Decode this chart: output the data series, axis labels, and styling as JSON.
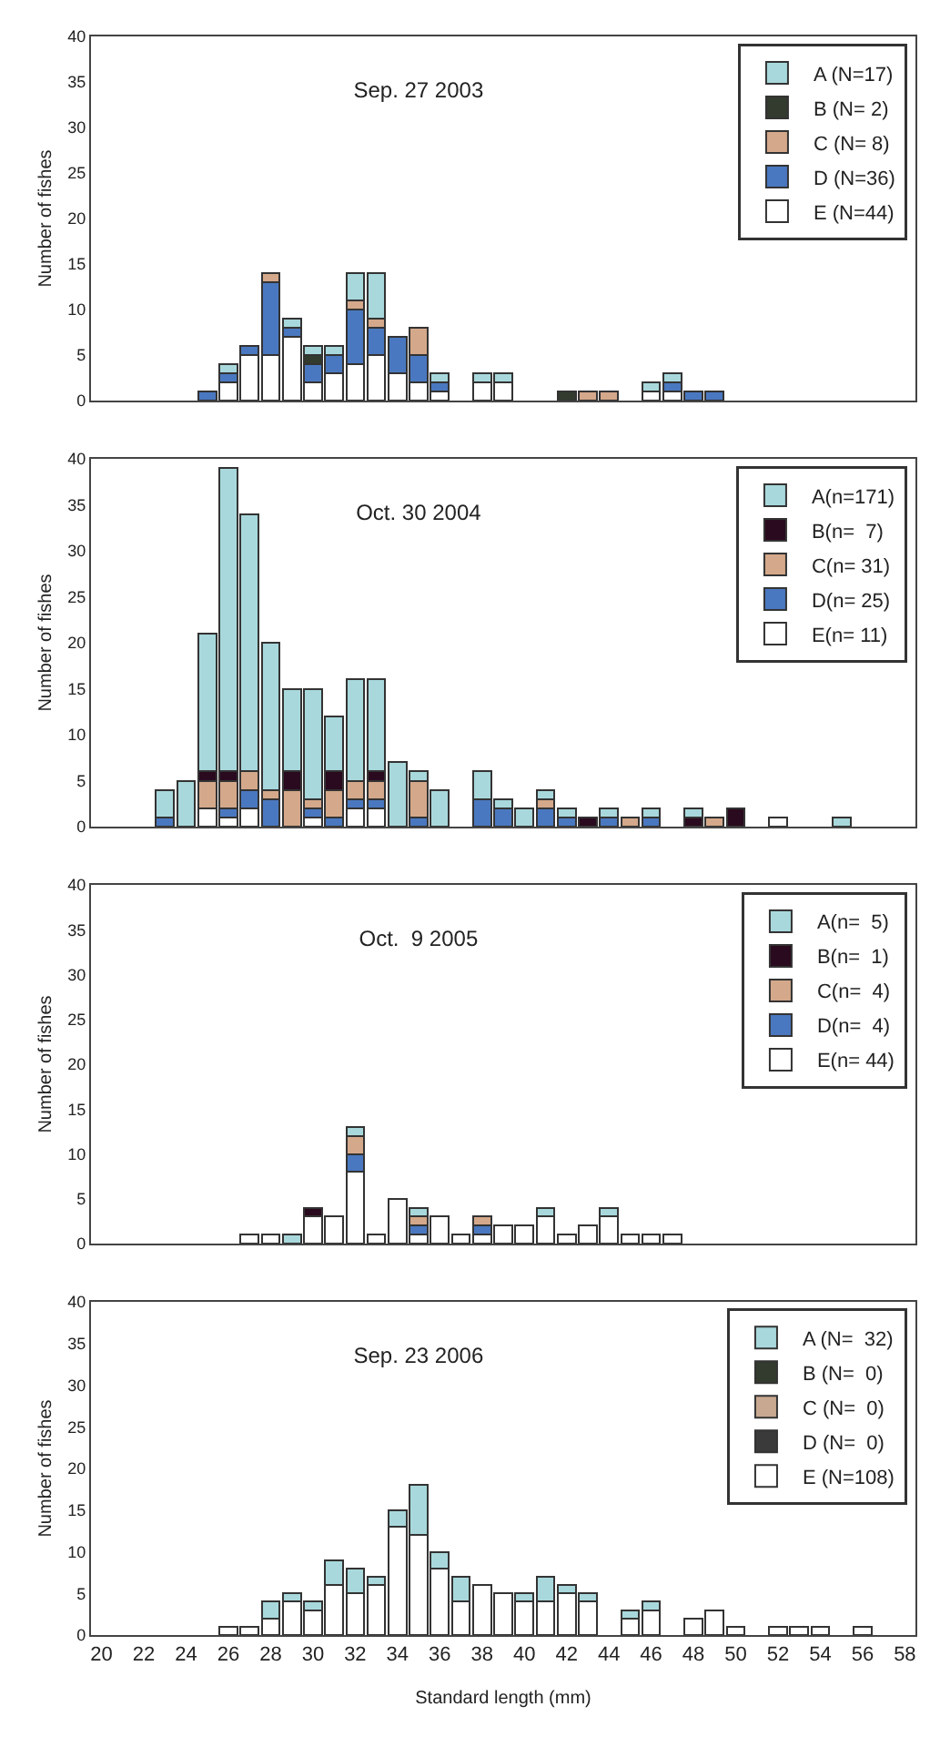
{
  "chart_data": [
    {
      "type": "bar",
      "title": "Sep. 27 2003",
      "ylabel": "Number of fishes",
      "stacked": true,
      "xlim": [
        19.5,
        58.5
      ],
      "xticks": [
        20,
        22,
        24,
        26,
        28,
        30,
        32,
        34,
        36,
        38,
        40,
        42,
        44,
        46,
        48,
        50,
        52,
        54,
        56,
        58
      ],
      "ylim": [
        0,
        40
      ],
      "yticks": [
        0,
        5,
        10,
        15,
        20,
        25,
        30,
        35,
        40
      ],
      "tick_labels": "y",
      "legend": "top right",
      "grid": false,
      "x": [
        25,
        26,
        27,
        28,
        29,
        30,
        31,
        32,
        33,
        34,
        35,
        36,
        38,
        39,
        42,
        43,
        44,
        46,
        47,
        48,
        49
      ],
      "series": [
        {
          "name": "E (N=44)",
          "color": "#ffffff",
          "values": [
            null,
            2,
            5,
            5,
            7,
            2,
            3,
            4,
            5,
            3,
            2,
            1,
            2,
            2,
            null,
            null,
            null,
            1,
            1,
            null,
            null
          ]
        },
        {
          "name": "D (N=36)",
          "color": "#4a78c0",
          "values": [
            1,
            1,
            1,
            8,
            1,
            2,
            2,
            6,
            3,
            4,
            3,
            1,
            null,
            null,
            null,
            null,
            null,
            null,
            1,
            1,
            1
          ]
        },
        {
          "name": "C (N= 8)",
          "color": "#d4a88a",
          "values": [
            null,
            null,
            null,
            1,
            null,
            null,
            null,
            1,
            1,
            null,
            3,
            null,
            null,
            null,
            null,
            1,
            1,
            null,
            null,
            null,
            null
          ]
        },
        {
          "name": "B (N= 2)",
          "color": "#333a2e",
          "values": [
            null,
            null,
            null,
            null,
            null,
            1,
            null,
            null,
            null,
            null,
            null,
            null,
            null,
            null,
            1,
            null,
            null,
            null,
            null,
            null,
            null
          ]
        },
        {
          "name": "A (N=17)",
          "color": "#a8d8dc",
          "values": [
            null,
            1,
            null,
            null,
            1,
            1,
            1,
            3,
            5,
            null,
            null,
            1,
            1,
            1,
            null,
            null,
            null,
            1,
            1,
            null,
            null
          ]
        }
      ]
    },
    {
      "type": "bar",
      "title": "Oct. 30 2004",
      "ylabel": "Number of fishes",
      "stacked": true,
      "xlim": [
        19.5,
        58.5
      ],
      "xticks": [
        20,
        22,
        24,
        26,
        28,
        30,
        32,
        34,
        36,
        38,
        40,
        42,
        44,
        46,
        48,
        50,
        52,
        54,
        56,
        58
      ],
      "ylim": [
        0,
        40
      ],
      "yticks": [
        0,
        5,
        10,
        15,
        20,
        25,
        30,
        35,
        40
      ],
      "tick_labels": "y",
      "legend": "top right",
      "grid": false,
      "x": [
        23,
        24,
        25,
        26,
        27,
        28,
        29,
        30,
        31,
        32,
        33,
        34,
        35,
        36,
        38,
        39,
        40,
        41,
        42,
        43,
        44,
        45,
        46,
        48,
        49,
        50,
        52,
        55
      ],
      "series": [
        {
          "name": "E(n= 11)",
          "color": "#ffffff",
          "values": [
            null,
            null,
            2,
            1,
            2,
            null,
            null,
            1,
            null,
            2,
            2,
            null,
            null,
            null,
            null,
            null,
            null,
            null,
            null,
            null,
            null,
            null,
            null,
            null,
            null,
            null,
            1,
            null
          ]
        },
        {
          "name": "D(n= 25)",
          "color": "#4a78c0",
          "values": [
            1,
            null,
            null,
            1,
            2,
            3,
            null,
            1,
            1,
            1,
            1,
            null,
            1,
            null,
            3,
            2,
            null,
            2,
            1,
            null,
            1,
            null,
            1,
            null,
            null,
            null,
            null,
            null
          ]
        },
        {
          "name": "C(n= 31)",
          "color": "#d4a88a",
          "values": [
            null,
            null,
            3,
            3,
            2,
            1,
            4,
            1,
            3,
            2,
            2,
            null,
            4,
            null,
            null,
            null,
            null,
            1,
            null,
            null,
            null,
            1,
            null,
            null,
            1,
            null,
            null,
            null
          ]
        },
        {
          "name": "B(n=  7)",
          "color": "#2a0a1e",
          "values": [
            null,
            null,
            1,
            1,
            null,
            null,
            2,
            null,
            2,
            null,
            1,
            null,
            null,
            null,
            null,
            null,
            null,
            null,
            null,
            1,
            null,
            null,
            null,
            1,
            null,
            2,
            null,
            null
          ]
        },
        {
          "name": "A(n=171)",
          "color": "#a8d8dc",
          "values": [
            3,
            5,
            15,
            33,
            28,
            16,
            9,
            12,
            6,
            11,
            10,
            7,
            1,
            4,
            3,
            1,
            2,
            1,
            1,
            null,
            1,
            null,
            1,
            1,
            null,
            null,
            null,
            1
          ]
        }
      ]
    },
    {
      "type": "bar",
      "title": "Oct.  9 2005",
      "ylabel": "Number of fishes",
      "stacked": true,
      "xlim": [
        19.5,
        58.5
      ],
      "xticks": [
        20,
        22,
        24,
        26,
        28,
        30,
        32,
        34,
        36,
        38,
        40,
        42,
        44,
        46,
        48,
        50,
        52,
        54,
        56,
        58
      ],
      "ylim": [
        0,
        40
      ],
      "yticks": [
        0,
        5,
        10,
        15,
        20,
        25,
        30,
        35,
        40
      ],
      "tick_labels": "y",
      "legend": "top right",
      "grid": false,
      "x": [
        27,
        28,
        29,
        30,
        31,
        32,
        33,
        34,
        35,
        36,
        37,
        38,
        39,
        40,
        41,
        42,
        43,
        44,
        45,
        46,
        47
      ],
      "series": [
        {
          "name": "E(n= 44)",
          "color": "#ffffff",
          "values": [
            1,
            1,
            null,
            3,
            3,
            8,
            1,
            5,
            1,
            3,
            1,
            1,
            2,
            2,
            3,
            1,
            2,
            3,
            1,
            1,
            1
          ]
        },
        {
          "name": "D(n=  4)",
          "color": "#4a78c0",
          "values": [
            null,
            null,
            null,
            null,
            null,
            2,
            null,
            null,
            1,
            null,
            null,
            1,
            null,
            null,
            null,
            null,
            null,
            null,
            null,
            null,
            null
          ]
        },
        {
          "name": "C(n=  4)",
          "color": "#d4a88a",
          "values": [
            null,
            null,
            null,
            null,
            null,
            2,
            null,
            null,
            1,
            null,
            null,
            1,
            null,
            null,
            null,
            null,
            null,
            null,
            null,
            null,
            null
          ]
        },
        {
          "name": "B(n=  1)",
          "color": "#2a0a1e",
          "values": [
            null,
            null,
            null,
            1,
            null,
            null,
            null,
            null,
            null,
            null,
            null,
            null,
            null,
            null,
            null,
            null,
            null,
            null,
            null,
            null,
            null
          ]
        },
        {
          "name": "A(n=  5)",
          "color": "#a8d8dc",
          "values": [
            null,
            null,
            1,
            null,
            null,
            1,
            null,
            null,
            1,
            null,
            null,
            null,
            null,
            null,
            1,
            null,
            null,
            1,
            null,
            null,
            null
          ]
        }
      ]
    },
    {
      "type": "bar",
      "title": "Sep. 23 2006",
      "ylabel": "Number of fishes",
      "xlabel": "Standard length (mm)",
      "stacked": true,
      "xlim": [
        19.5,
        58.5
      ],
      "xticks": [
        20,
        22,
        24,
        26,
        28,
        30,
        32,
        34,
        36,
        38,
        40,
        42,
        44,
        46,
        48,
        50,
        52,
        54,
        56,
        58
      ],
      "ylim": [
        0,
        40
      ],
      "yticks": [
        0,
        5,
        10,
        15,
        20,
        25,
        30,
        35,
        40
      ],
      "legend": "top right",
      "grid": false,
      "x": [
        26,
        27,
        28,
        29,
        30,
        31,
        32,
        33,
        34,
        35,
        36,
        37,
        38,
        39,
        40,
        41,
        42,
        43,
        45,
        46,
        48,
        49,
        50,
        52,
        53,
        54,
        56
      ],
      "series": [
        {
          "name": "E (N=108)",
          "color": "#ffffff",
          "values": [
            1,
            1,
            2,
            4,
            3,
            6,
            5,
            6,
            13,
            12,
            8,
            4,
            6,
            5,
            4,
            4,
            5,
            4,
            2,
            3,
            2,
            3,
            1,
            1,
            1,
            1,
            1
          ]
        },
        {
          "name": "D (N=  0)",
          "color": "#3a3a3a",
          "values": [
            null,
            null,
            null,
            null,
            null,
            null,
            null,
            null,
            null,
            null,
            null,
            null,
            null,
            null,
            null,
            null,
            null,
            null,
            null,
            null,
            null,
            null,
            null,
            null,
            null,
            null,
            null
          ]
        },
        {
          "name": "C (N=  0)",
          "color": "#c8a890",
          "values": [
            null,
            null,
            null,
            null,
            null,
            null,
            null,
            null,
            null,
            null,
            null,
            null,
            null,
            null,
            null,
            null,
            null,
            null,
            null,
            null,
            null,
            null,
            null,
            null,
            null,
            null,
            null
          ]
        },
        {
          "name": "B (N=  0)",
          "color": "#333a2e",
          "values": [
            null,
            null,
            null,
            null,
            null,
            null,
            null,
            null,
            null,
            null,
            null,
            null,
            null,
            null,
            null,
            null,
            null,
            null,
            null,
            null,
            null,
            null,
            null,
            null,
            null,
            null,
            null
          ]
        },
        {
          "name": "A (N=  32)",
          "color": "#a8d8dc",
          "values": [
            null,
            null,
            2,
            1,
            1,
            3,
            3,
            1,
            2,
            6,
            2,
            3,
            null,
            null,
            1,
            3,
            1,
            1,
            1,
            1,
            null,
            null,
            null,
            null,
            null,
            null,
            null
          ]
        }
      ]
    }
  ]
}
